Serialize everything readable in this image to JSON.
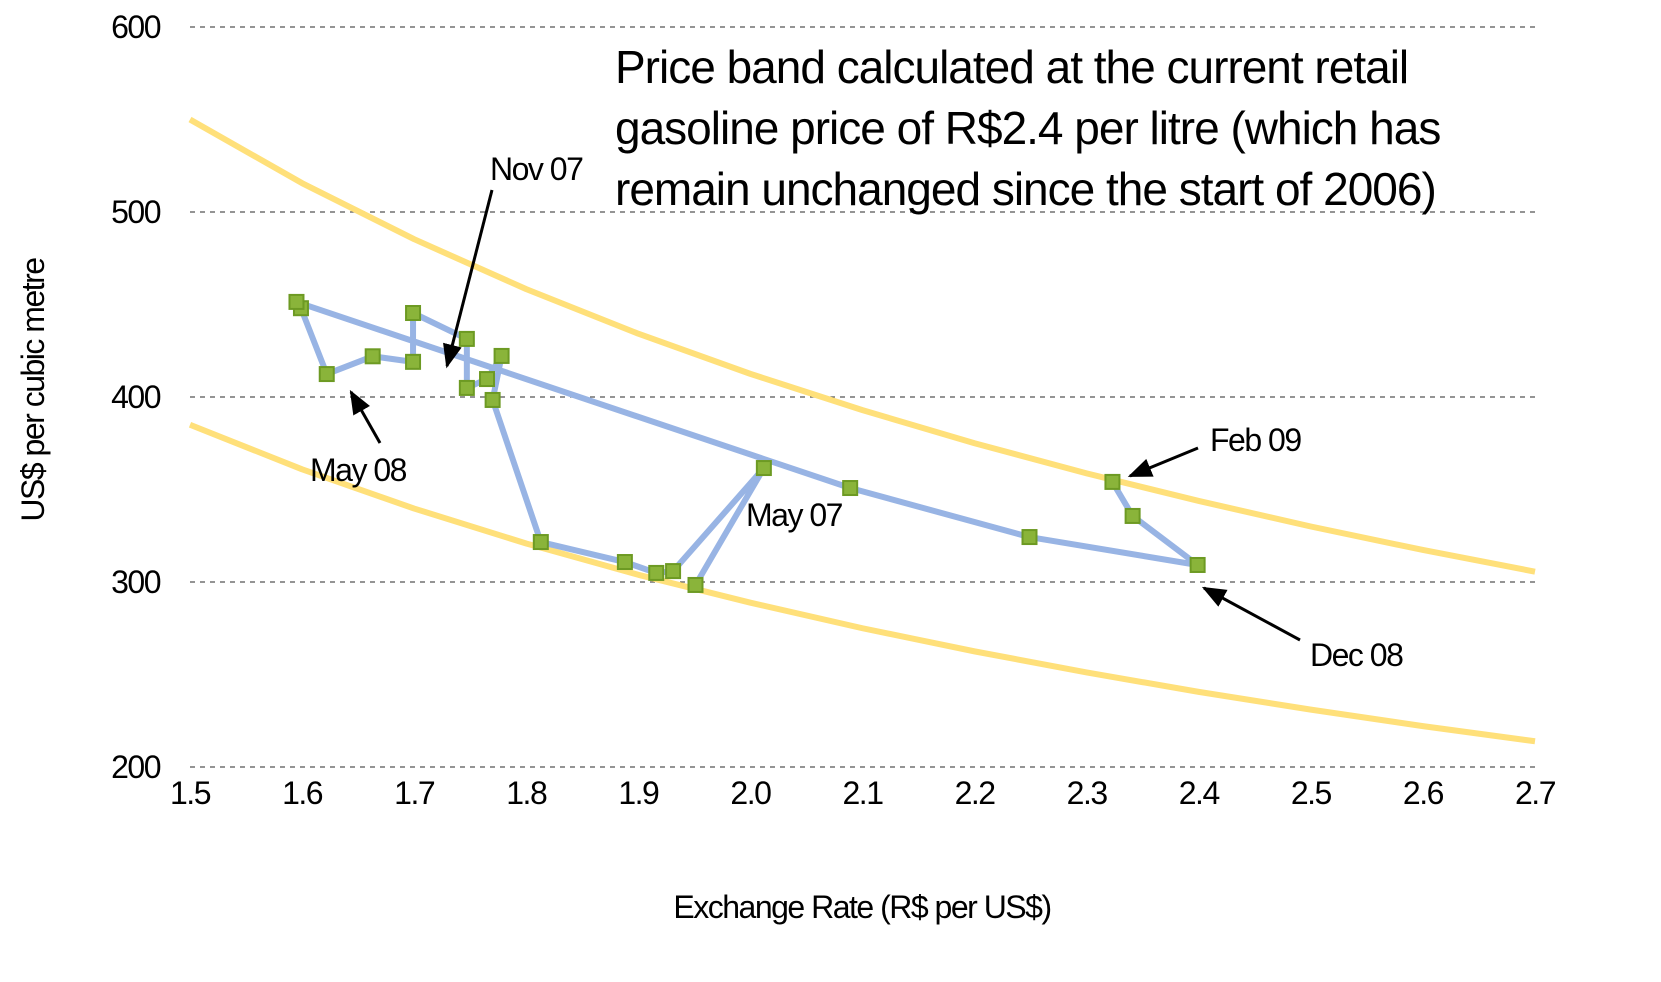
{
  "chart_data": {
    "type": "line",
    "xlabel": "Exchange Rate (R$ per US$)",
    "ylabel": "US$ per cubic metre",
    "xlim": [
      1.5,
      2.7
    ],
    "ylim": [
      200,
      600
    ],
    "xticks": [
      1.5,
      1.6,
      1.7,
      1.8,
      1.9,
      {
        "value": 2,
        "label": "2.0"
      },
      2.1,
      2.2,
      2.3,
      2.4,
      2.5,
      2.6,
      2.7
    ],
    "yticks": [
      200,
      300,
      400,
      500,
      600
    ],
    "grid": true,
    "note": [
      "Price band calculated at the current retail",
      "gasoline price of R$2.4 per litre (which has",
      "remain unchanged since the start of 2006)"
    ],
    "annotations": [
      "Nov 07",
      "May 08",
      "May 07",
      "Feb 09",
      "Dec 08"
    ],
    "series": [
      {
        "color": "#ffe07a",
        "markers": false,
        "x": [
          1.5,
          1.6,
          1.7,
          1.8,
          1.9,
          2.0,
          2.1,
          2.2,
          2.3,
          2.4,
          2.5,
          2.6,
          2.7
        ],
        "values": [
          550,
          515.6,
          485.3,
          458.3,
          434.2,
          412.5,
          392.9,
          375,
          358.7,
          343.8,
          330,
          317.3,
          305.6
        ]
      },
      {
        "color": "#ffe07a",
        "markers": false,
        "x": [
          1.5,
          1.6,
          1.7,
          1.8,
          1.9,
          2.0,
          2.1,
          2.2,
          2.3,
          2.4,
          2.5,
          2.6,
          2.7
        ],
        "values": [
          385,
          360.9,
          339.7,
          320.8,
          303.9,
          288.8,
          275,
          262.5,
          251.1,
          240.6,
          231,
          222.1,
          213.9
        ]
      },
      {
        "color": "#98b4e4",
        "markers": true,
        "marker_color": "#8ab43a",
        "x": [
          1.951,
          2.012,
          1.931,
          1.916,
          1.888,
          1.813,
          1.77,
          1.778,
          1.765,
          1.747,
          1.747,
          1.699,
          1.699,
          1.663,
          1.622,
          1.599,
          1.595,
          2.089,
          2.249,
          2.399,
          2.341,
          2.323
        ],
        "values": [
          298.4,
          361.6,
          305.9,
          304.9,
          310.8,
          321.6,
          398.4,
          422.2,
          409.7,
          404.9,
          431.4,
          445.4,
          419,
          422,
          412.4,
          448,
          451.4,
          350.8,
          324.3,
          309.2,
          335.7,
          354.1
        ]
      }
    ]
  }
}
